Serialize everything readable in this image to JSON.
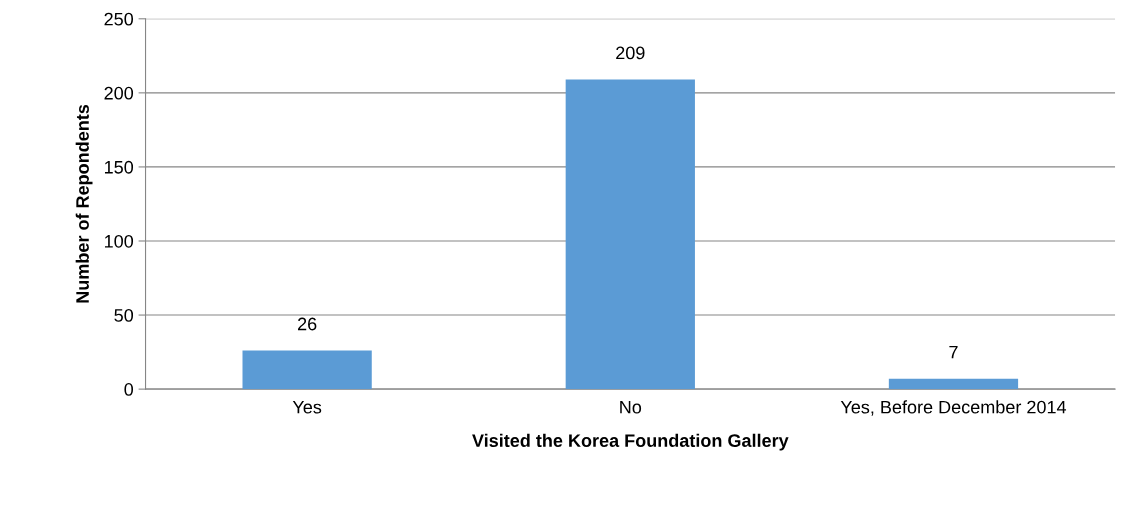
{
  "chart_data": {
    "type": "bar",
    "categories": [
      "Yes",
      "No",
      "Yes, Before December 2014"
    ],
    "values": [
      26,
      209,
      7
    ],
    "color": "#5b9bd5",
    "xlabel": "Visited the Korea Foundation Gallery",
    "ylabel": "Number of Repondents",
    "ylim": [
      0,
      250
    ],
    "yticks": [
      0,
      50,
      100,
      150,
      200,
      250
    ],
    "grid": "y",
    "data_labels": true
  }
}
